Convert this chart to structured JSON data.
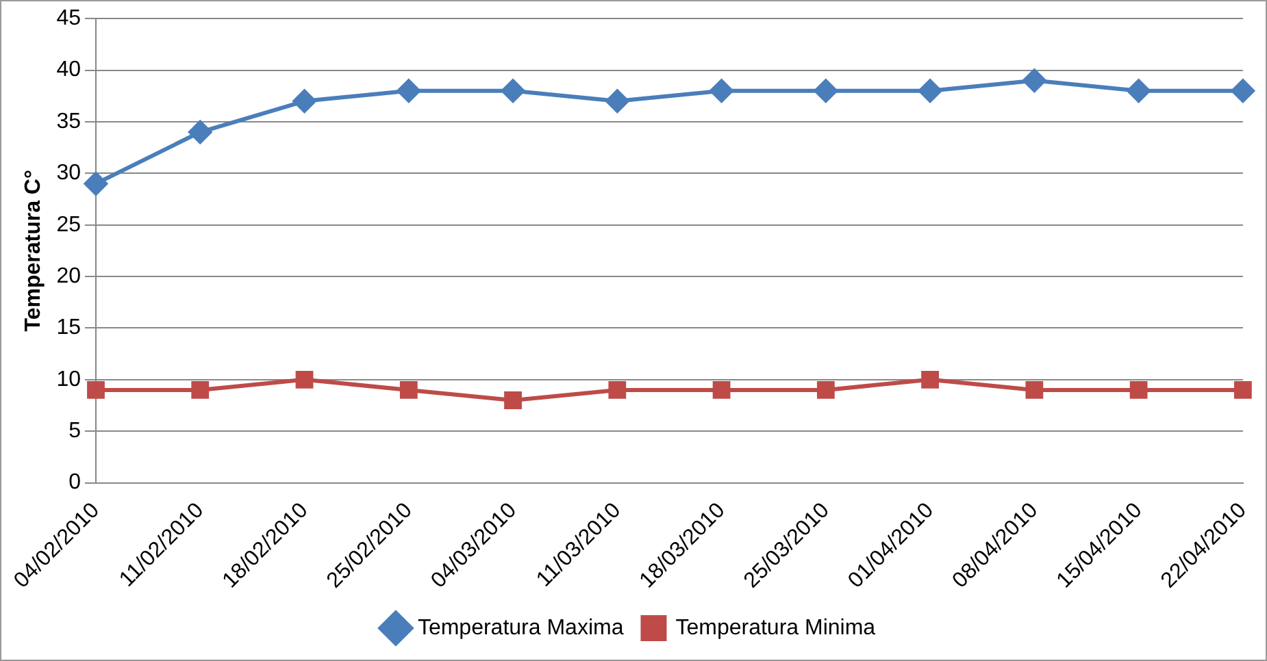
{
  "chart_data": {
    "type": "line",
    "ylabel": "Temperatura C°",
    "categories": [
      "04/02/2010",
      "11/02/2010",
      "18/02/2010",
      "25/02/2010",
      "04/03/2010",
      "11/03/2010",
      "18/03/2010",
      "25/03/2010",
      "01/04/2010",
      "08/04/2010",
      "15/04/2010",
      "22/04/2010"
    ],
    "series": [
      {
        "name": "Temperatura Maxima",
        "color": "#4a7ebb",
        "marker": "diamond",
        "values": [
          29,
          34,
          37,
          38,
          38,
          37,
          38,
          38,
          38,
          39,
          38,
          38
        ]
      },
      {
        "name": "Temperatura Minima",
        "color": "#be4b48",
        "marker": "square",
        "values": [
          9,
          9,
          10,
          9,
          8,
          9,
          9,
          9,
          10,
          9,
          9,
          9
        ]
      }
    ],
    "ylim": [
      0,
      45
    ],
    "yticks": [
      0,
      5,
      10,
      15,
      20,
      25,
      30,
      35,
      40,
      45
    ],
    "grid": "y",
    "legend": "bottom",
    "line_style": "solid"
  }
}
